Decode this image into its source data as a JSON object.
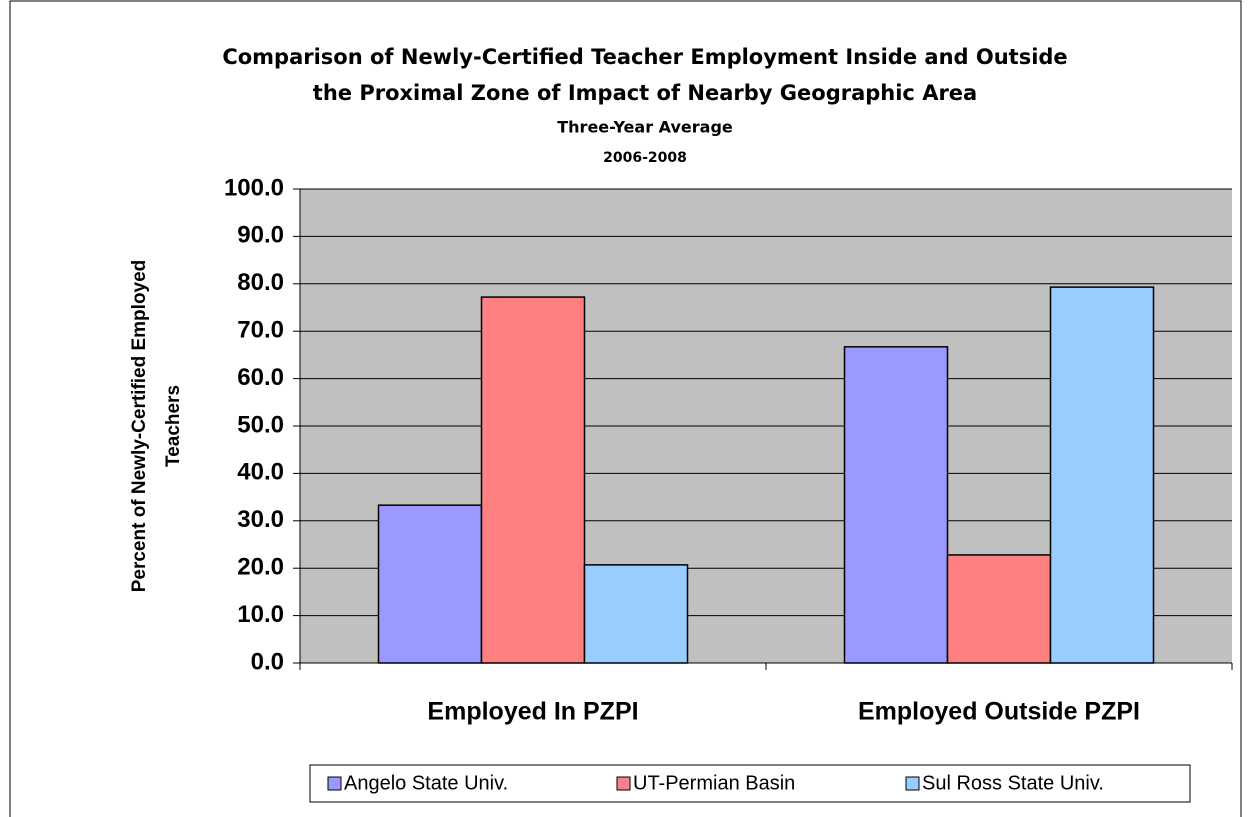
{
  "chart_data": {
    "type": "bar",
    "title": [
      "Comparison of Newly-Certified Teacher Employment Inside and Outside",
      "the Proximal Zone of Impact of Nearby Geographic Area"
    ],
    "subtitle": [
      "Three-Year Average",
      "2006-2008"
    ],
    "y_label": [
      "Percent of Newly-Certified Employed",
      "Teachers"
    ],
    "categories": [
      "Employed In PZPI",
      "Employed Outside PZPI"
    ],
    "series": [
      {
        "name": "Angelo State Univ.",
        "color": "#9999ff",
        "values": [
          33.3,
          66.7
        ]
      },
      {
        "name": "UT-Permian Basin",
        "color": "#ff8080",
        "values": [
          77.2,
          22.8
        ]
      },
      {
        "name": "Sul Ross State Univ.",
        "color": "#99ccff",
        "values": [
          20.7,
          79.3
        ]
      }
    ],
    "ylim": [
      0,
      100
    ],
    "yticks": [
      {
        "value": 0,
        "label": "0.0"
      },
      {
        "value": 10,
        "label": "10.0"
      },
      {
        "value": 20,
        "label": "20.0"
      },
      {
        "value": 30,
        "label": "30.0"
      },
      {
        "value": 40,
        "label": "40.0"
      },
      {
        "value": 50,
        "label": "50.0"
      },
      {
        "value": 60,
        "label": "60.0"
      },
      {
        "value": 70,
        "label": "70.0"
      },
      {
        "value": 80,
        "label": "80.0"
      },
      {
        "value": 90,
        "label": "90.0"
      },
      {
        "value": 100,
        "label": "100.0"
      }
    ],
    "grid": true,
    "legend": "bottom"
  }
}
